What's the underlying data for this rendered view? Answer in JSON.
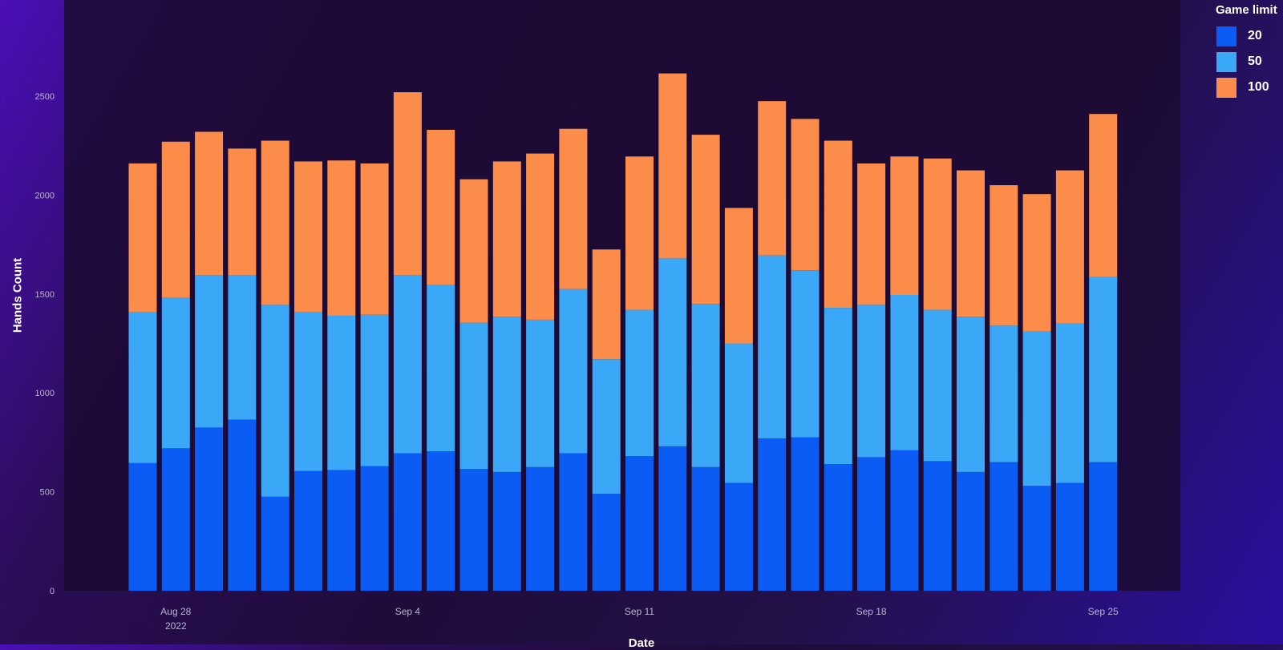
{
  "chart_data": {
    "type": "bar",
    "stacked": true,
    "title": "",
    "xlabel": "Date",
    "ylabel": "Hands Count",
    "ylim": [
      0,
      2900
    ],
    "yticks": [
      0,
      500,
      1000,
      1500,
      2000,
      2500
    ],
    "xticks": [
      {
        "index": 1,
        "label": "Aug 28",
        "sub": "2022"
      },
      {
        "index": 8,
        "label": "Sep 4"
      },
      {
        "index": 15,
        "label": "Sep 11"
      },
      {
        "index": 22,
        "label": "Sep 18"
      },
      {
        "index": 29,
        "label": "Sep 25"
      }
    ],
    "categories": [
      "2022-08-27",
      "2022-08-28",
      "2022-08-29",
      "2022-08-30",
      "2022-08-31",
      "2022-09-01",
      "2022-09-02",
      "2022-09-03",
      "2022-09-04",
      "2022-09-05",
      "2022-09-06",
      "2022-09-07",
      "2022-09-08",
      "2022-09-09",
      "2022-09-10",
      "2022-09-11",
      "2022-09-12",
      "2022-09-13",
      "2022-09-14",
      "2022-09-15",
      "2022-09-16",
      "2022-09-17",
      "2022-09-18",
      "2022-09-19",
      "2022-09-20",
      "2022-09-21",
      "2022-09-22",
      "2022-09-23",
      "2022-09-24",
      "2022-09-25"
    ],
    "legend_title": "Game limit",
    "legend_position": "top-right",
    "grid": false,
    "series": [
      {
        "name": "20",
        "color": "#0a5cf5",
        "values": [
          645,
          720,
          825,
          865,
          475,
          605,
          610,
          630,
          695,
          705,
          615,
          600,
          625,
          695,
          490,
          680,
          730,
          625,
          545,
          770,
          775,
          640,
          675,
          710,
          655,
          600,
          650,
          530,
          545,
          650
        ]
      },
      {
        "name": "50",
        "color": "#3ba7f7",
        "values": [
          765,
          760,
          770,
          730,
          970,
          805,
          780,
          765,
          900,
          840,
          740,
          785,
          745,
          830,
          680,
          740,
          950,
          825,
          705,
          925,
          845,
          790,
          770,
          785,
          765,
          785,
          690,
          780,
          805,
          935
        ]
      },
      {
        "name": "100",
        "color": "#fb8c4a",
        "values": [
          750,
          790,
          725,
          640,
          830,
          760,
          785,
          765,
          925,
          785,
          725,
          785,
          840,
          810,
          555,
          775,
          935,
          855,
          685,
          780,
          765,
          845,
          715,
          700,
          765,
          740,
          710,
          695,
          775,
          825
        ]
      }
    ]
  }
}
